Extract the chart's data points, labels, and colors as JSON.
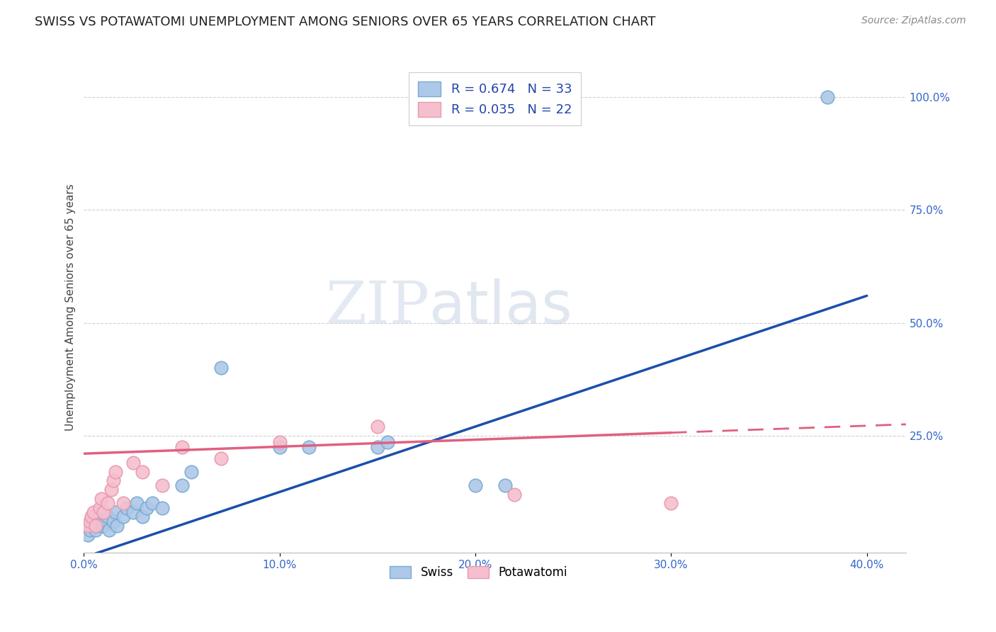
{
  "title": "SWISS VS POTAWATOMI UNEMPLOYMENT AMONG SENIORS OVER 65 YEARS CORRELATION CHART",
  "source": "Source: ZipAtlas.com",
  "ylabel": "Unemployment Among Seniors over 65 years",
  "watermark_zip": "ZIP",
  "watermark_atlas": "atlas",
  "xlim": [
    0.0,
    0.42
  ],
  "ylim": [
    -0.01,
    1.08
  ],
  "xticks": [
    0.0,
    0.1,
    0.2,
    0.3,
    0.4
  ],
  "xticklabels": [
    "0.0%",
    "10.0%",
    "20.0%",
    "30.0%",
    "40.0%"
  ],
  "yticks_right": [
    0.25,
    0.5,
    0.75,
    1.0
  ],
  "yticks_right_labels": [
    "25.0%",
    "50.0%",
    "75.0%",
    "100.0%"
  ],
  "swiss_color": "#adc8e8",
  "swiss_edge_color": "#7aaad0",
  "swiss_line_color": "#1a4faa",
  "potawatomi_color": "#f5bfce",
  "potawatomi_edge_color": "#e899b0",
  "potawatomi_line_color": "#e06080",
  "swiss_R": 0.674,
  "swiss_N": 33,
  "potawatomi_R": 0.035,
  "potawatomi_N": 22,
  "swiss_x": [
    0.002,
    0.003,
    0.004,
    0.005,
    0.006,
    0.007,
    0.008,
    0.009,
    0.01,
    0.011,
    0.012,
    0.013,
    0.015,
    0.016,
    0.017,
    0.02,
    0.022,
    0.025,
    0.027,
    0.03,
    0.032,
    0.035,
    0.04,
    0.05,
    0.055,
    0.07,
    0.1,
    0.115,
    0.15,
    0.155,
    0.2,
    0.215,
    0.38
  ],
  "swiss_y": [
    0.03,
    0.04,
    0.05,
    0.06,
    0.04,
    0.05,
    0.06,
    0.07,
    0.05,
    0.06,
    0.07,
    0.04,
    0.06,
    0.08,
    0.05,
    0.07,
    0.09,
    0.08,
    0.1,
    0.07,
    0.09,
    0.1,
    0.09,
    0.14,
    0.17,
    0.4,
    0.225,
    0.225,
    0.225,
    0.235,
    0.14,
    0.14,
    1.0
  ],
  "potawatomi_x": [
    0.002,
    0.003,
    0.004,
    0.005,
    0.006,
    0.008,
    0.009,
    0.01,
    0.012,
    0.014,
    0.015,
    0.016,
    0.02,
    0.025,
    0.03,
    0.04,
    0.05,
    0.07,
    0.1,
    0.15,
    0.22,
    0.3
  ],
  "potawatomi_y": [
    0.05,
    0.06,
    0.07,
    0.08,
    0.05,
    0.09,
    0.11,
    0.08,
    0.1,
    0.13,
    0.15,
    0.17,
    0.1,
    0.19,
    0.17,
    0.14,
    0.225,
    0.2,
    0.235,
    0.27,
    0.12,
    0.1
  ],
  "swiss_line_x0": 0.0,
  "swiss_line_y0": -0.02,
  "swiss_line_x1": 0.4,
  "swiss_line_y1": 0.56,
  "potawatomi_line_x0": 0.0,
  "potawatomi_line_y0": 0.21,
  "potawatomi_line_x1": 0.42,
  "potawatomi_line_y1": 0.275,
  "background_color": "#ffffff",
  "grid_color": "#d0d0d0",
  "title_fontsize": 13,
  "legend_fontsize": 13,
  "axis_label_fontsize": 11,
  "tick_fontsize": 11,
  "tick_color": "#3366cc",
  "title_color": "#222222",
  "source_color": "#888888"
}
